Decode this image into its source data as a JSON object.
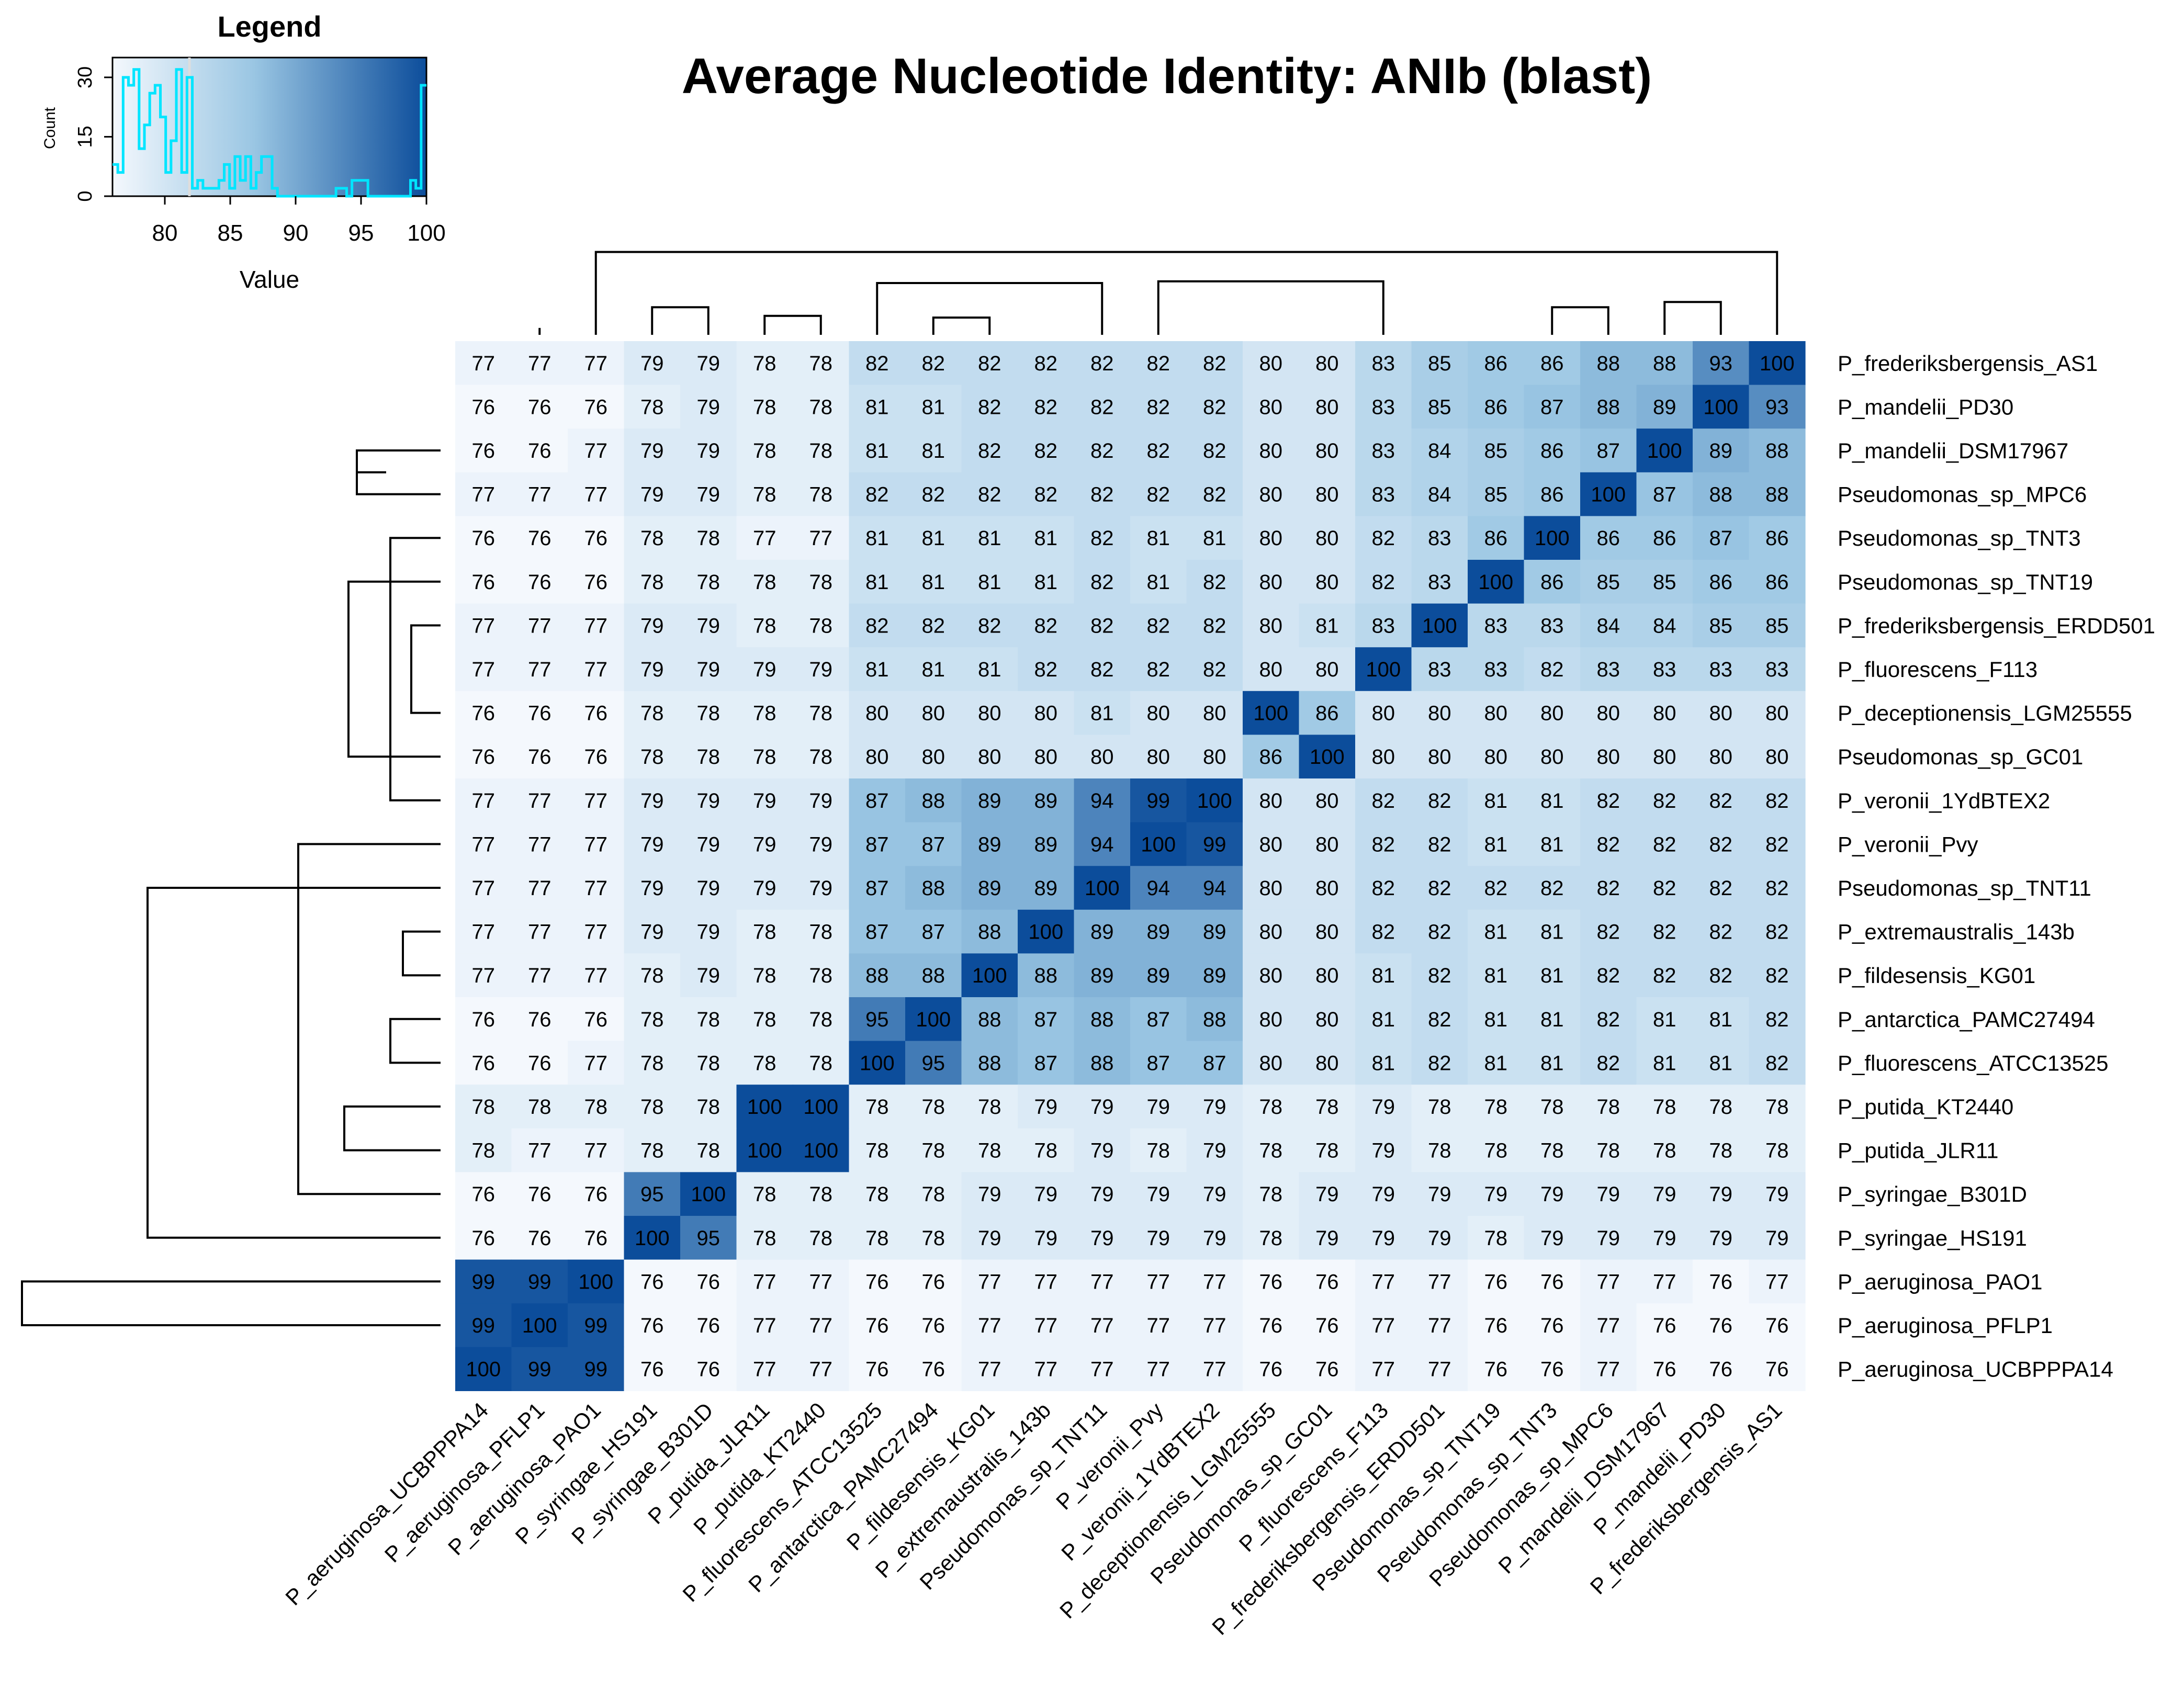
{
  "chart_data": {
    "type": "heatmap",
    "title": "Average Nucleotide Identity: ANIb (blast)",
    "legend": {
      "title": "Legend",
      "xlabel": "Value",
      "ylabel": "Count",
      "x_ticks": [
        "80",
        "85",
        "90",
        "95",
        "100"
      ],
      "y_ticks": [
        "0",
        "15",
        "30"
      ],
      "value_range": [
        76,
        100
      ],
      "count_range": [
        0,
        35
      ],
      "histogram_counts": [
        8,
        6,
        30,
        28,
        32,
        12,
        18,
        26,
        28,
        20,
        6,
        14,
        32,
        6,
        30,
        2,
        4,
        2,
        2,
        2,
        4,
        8,
        2,
        10,
        4,
        10,
        2,
        6,
        10,
        10,
        2,
        0,
        0,
        0,
        0,
        0,
        0,
        0,
        0,
        0,
        0,
        0,
        2,
        2,
        0,
        4,
        4,
        4,
        0,
        0,
        0,
        0,
        0,
        0,
        0,
        0,
        4,
        2,
        28
      ]
    },
    "color_scale": {
      "low": "#f4f8fd",
      "mid": "#9ac6e3",
      "high": "#0c4d9b"
    },
    "row_labels": [
      "P_frederiksbergensis_AS1",
      "P_mandelii_PD30",
      "P_mandelii_DSM17967",
      "Pseudomonas_sp_MPC6",
      "Pseudomonas_sp_TNT3",
      "Pseudomonas_sp_TNT19",
      "P_frederiksbergensis_ERDD501",
      "P_fluorescens_F113",
      "P_deceptionensis_LGM25555",
      "Pseudomonas_sp_GC01",
      "P_veronii_1YdBTEX2",
      "P_veronii_Pvy",
      "Pseudomonas_sp_TNT11",
      "P_extremaustralis_143b",
      "P_fildesensis_KG01",
      "P_antarctica_PAMC27494",
      "P_fluorescens_ATCC13525",
      "P_putida_KT2440",
      "P_putida_JLR11",
      "P_syringae_B301D",
      "P_syringae_HS191",
      "P_aeruginosa_PAO1",
      "P_aeruginosa_PFLP1",
      "P_aeruginosa_UCBPPPA14"
    ],
    "col_labels": [
      "P_aeruginosa_UCBPPPA14",
      "P_aeruginosa_PFLP1",
      "P_aeruginosa_PAO1",
      "P_syringae_HS191",
      "P_syringae_B301D",
      "P_putida_JLR11",
      "P_putida_KT2440",
      "P_fluorescens_ATCC13525",
      "P_antarctica_PAMC27494",
      "P_fildesensis_KG01",
      "P_extremaustralis_143b",
      "Pseudomonas_sp_TNT11",
      "P_veronii_Pvy",
      "P_veronii_1YdBTEX2",
      "P_deceptionensis_LGM25555",
      "Pseudomonas_sp_GC01",
      "P_fluorescens_F113",
      "P_frederiksbergensis_ERDD501",
      "Pseudomonas_sp_TNT19",
      "Pseudomonas_sp_TNT3",
      "Pseudomonas_sp_MPC6",
      "P_mandelii_DSM17967",
      "P_mandelii_PD30",
      "P_frederiksbergensis_AS1"
    ],
    "values": [
      [
        77,
        77,
        77,
        79,
        79,
        78,
        78,
        82,
        82,
        82,
        82,
        82,
        82,
        82,
        80,
        80,
        83,
        85,
        86,
        86,
        88,
        88,
        93,
        100
      ],
      [
        76,
        76,
        76,
        78,
        79,
        78,
        78,
        81,
        81,
        82,
        82,
        82,
        82,
        82,
        80,
        80,
        83,
        85,
        86,
        87,
        88,
        89,
        100,
        93
      ],
      [
        76,
        76,
        77,
        79,
        79,
        78,
        78,
        81,
        81,
        82,
        82,
        82,
        82,
        82,
        80,
        80,
        83,
        84,
        85,
        86,
        87,
        100,
        89,
        88
      ],
      [
        77,
        77,
        77,
        79,
        79,
        78,
        78,
        82,
        82,
        82,
        82,
        82,
        82,
        82,
        80,
        80,
        83,
        84,
        85,
        86,
        100,
        87,
        88,
        88
      ],
      [
        76,
        76,
        76,
        78,
        78,
        77,
        77,
        81,
        81,
        81,
        81,
        82,
        81,
        81,
        80,
        80,
        82,
        83,
        86,
        100,
        86,
        86,
        87,
        86
      ],
      [
        76,
        76,
        76,
        78,
        78,
        78,
        78,
        81,
        81,
        81,
        81,
        82,
        81,
        82,
        80,
        80,
        82,
        83,
        100,
        86,
        85,
        85,
        86,
        86
      ],
      [
        77,
        77,
        77,
        79,
        79,
        78,
        78,
        82,
        82,
        82,
        82,
        82,
        82,
        82,
        80,
        81,
        83,
        100,
        83,
        83,
        84,
        84,
        85,
        85
      ],
      [
        77,
        77,
        77,
        79,
        79,
        79,
        79,
        81,
        81,
        81,
        82,
        82,
        82,
        82,
        80,
        80,
        100,
        83,
        83,
        82,
        83,
        83,
        83,
        83
      ],
      [
        76,
        76,
        76,
        78,
        78,
        78,
        78,
        80,
        80,
        80,
        80,
        81,
        80,
        80,
        100,
        86,
        80,
        80,
        80,
        80,
        80,
        80,
        80,
        80
      ],
      [
        76,
        76,
        76,
        78,
        78,
        78,
        78,
        80,
        80,
        80,
        80,
        80,
        80,
        80,
        86,
        100,
        80,
        80,
        80,
        80,
        80,
        80,
        80,
        80
      ],
      [
        77,
        77,
        77,
        79,
        79,
        79,
        79,
        87,
        88,
        89,
        89,
        94,
        99,
        100,
        80,
        80,
        82,
        82,
        81,
        81,
        82,
        82,
        82,
        82
      ],
      [
        77,
        77,
        77,
        79,
        79,
        79,
        79,
        87,
        87,
        89,
        89,
        94,
        100,
        99,
        80,
        80,
        82,
        82,
        81,
        81,
        82,
        82,
        82,
        82
      ],
      [
        77,
        77,
        77,
        79,
        79,
        79,
        79,
        87,
        88,
        89,
        89,
        100,
        94,
        94,
        80,
        80,
        82,
        82,
        82,
        82,
        82,
        82,
        82,
        82
      ],
      [
        77,
        77,
        77,
        79,
        79,
        78,
        78,
        87,
        87,
        88,
        100,
        89,
        89,
        89,
        80,
        80,
        82,
        82,
        81,
        81,
        82,
        82,
        82,
        82
      ],
      [
        77,
        77,
        77,
        78,
        79,
        78,
        78,
        88,
        88,
        100,
        88,
        89,
        89,
        89,
        80,
        80,
        81,
        82,
        81,
        81,
        82,
        82,
        82,
        82
      ],
      [
        76,
        76,
        76,
        78,
        78,
        78,
        78,
        95,
        100,
        88,
        87,
        88,
        87,
        88,
        80,
        80,
        81,
        82,
        81,
        81,
        82,
        81,
        81,
        82
      ],
      [
        76,
        76,
        77,
        78,
        78,
        78,
        78,
        100,
        95,
        88,
        87,
        88,
        87,
        87,
        80,
        80,
        81,
        82,
        81,
        81,
        82,
        81,
        81,
        82
      ],
      [
        78,
        78,
        78,
        78,
        78,
        100,
        100,
        78,
        78,
        78,
        79,
        79,
        79,
        79,
        78,
        78,
        79,
        78,
        78,
        78,
        78,
        78,
        78,
        78
      ],
      [
        78,
        77,
        77,
        78,
        78,
        100,
        100,
        78,
        78,
        78,
        78,
        79,
        78,
        79,
        78,
        78,
        79,
        78,
        78,
        78,
        78,
        78,
        78,
        78
      ],
      [
        76,
        76,
        76,
        95,
        100,
        78,
        78,
        78,
        78,
        79,
        79,
        79,
        79,
        79,
        78,
        79,
        79,
        79,
        79,
        79,
        79,
        79,
        79,
        79
      ],
      [
        76,
        76,
        76,
        100,
        95,
        78,
        78,
        78,
        78,
        79,
        79,
        79,
        79,
        79,
        78,
        79,
        79,
        79,
        78,
        79,
        79,
        79,
        79,
        79
      ],
      [
        99,
        99,
        100,
        76,
        76,
        77,
        77,
        76,
        76,
        77,
        77,
        77,
        77,
        77,
        76,
        76,
        77,
        77,
        76,
        76,
        77,
        77,
        76,
        77
      ],
      [
        99,
        100,
        99,
        76,
        76,
        77,
        77,
        76,
        76,
        77,
        77,
        77,
        77,
        77,
        76,
        76,
        77,
        77,
        76,
        76,
        77,
        76,
        76,
        76
      ],
      [
        100,
        99,
        99,
        76,
        76,
        77,
        77,
        76,
        76,
        77,
        77,
        77,
        77,
        77,
        76,
        76,
        77,
        77,
        76,
        76,
        77,
        76,
        76,
        76
      ]
    ],
    "col_dendrogram": [
      [
        0,
        1,
        0.03
      ],
      [
        -2,
        2,
        0.04
      ],
      [
        3,
        4,
        0.07
      ],
      [
        5,
        6,
        0.01
      ],
      [
        -4,
        -5,
        0.16
      ],
      [
        7,
        8,
        0.25
      ],
      [
        14,
        15,
        0.07
      ],
      [
        9,
        10,
        0.06
      ],
      [
        11,
        12,
        0.04
      ],
      [
        -9,
        -10,
        0.1
      ],
      [
        13,
        -11,
        0.25
      ],
      [
        -8,
        -12,
        0.3
      ],
      [
        18,
        19,
        0.09
      ],
      [
        -7,
        -6,
        0.11
      ],
      [
        20,
        -14,
        0.13
      ],
      [
        21,
        -15,
        0.16
      ],
      [
        22,
        -16,
        0.16
      ],
      [
        -13,
        -17,
        0.31
      ],
      [
        17,
        -18,
        0.12
      ],
      [
        16,
        -19,
        0.1
      ],
      [
        -20,
        -21,
        0.16
      ],
      [
        -22,
        -23,
        0.19
      ],
      [
        -3,
        -24,
        0.48
      ]
    ],
    "row_dendrogram": [
      [
        23,
        22,
        0.01
      ],
      [
        21,
        -1,
        0.03
      ],
      [
        18,
        17,
        0.01
      ],
      [
        19,
        20,
        0.07
      ],
      [
        -3,
        -4,
        0.2
      ],
      [
        16,
        15,
        0.08
      ],
      [
        14,
        13,
        0.11
      ],
      [
        12,
        11,
        0.02
      ],
      [
        10,
        -8,
        0.04
      ],
      [
        -9,
        -7,
        0.07
      ],
      [
        -10,
        -6,
        0.22
      ],
      [
        -11,
        -5,
        0.12
      ],
      [
        5,
        4,
        0.13
      ],
      [
        3,
        2,
        0.04
      ],
      [
        1,
        0,
        0.05
      ],
      [
        -15,
        -14,
        0.09
      ],
      [
        -16,
        -17,
        0.12
      ],
      [
        7,
        6,
        0.09
      ],
      [
        9,
        8,
        0.09
      ],
      [
        -18,
        -19,
        0.23
      ],
      [
        -20,
        -12,
        0.34
      ],
      [
        -21,
        -13,
        0.7
      ],
      [
        -22,
        -23,
        1.0
      ]
    ]
  }
}
